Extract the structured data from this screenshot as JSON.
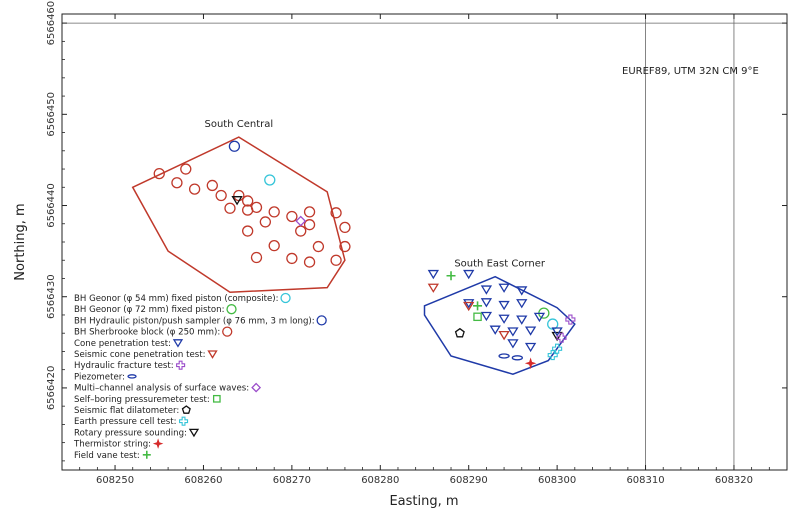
{
  "chart_data": {
    "type": "scatter",
    "title": "",
    "xlabel": "Easting, m",
    "ylabel": "Northing, m",
    "xlim": [
      608244,
      608326
    ],
    "ylim": [
      6566411,
      6566461
    ],
    "x_ticks": [
      "608250",
      "608260",
      "608270",
      "608280",
      "608290",
      "608300",
      "608310",
      "608320"
    ],
    "x_tick_values": [
      608250,
      608260,
      608270,
      608280,
      608290,
      608300,
      608310,
      608320
    ],
    "y_ticks": [
      "6566420",
      "6566430",
      "6566440",
      "6566450",
      "6566460"
    ],
    "y_tick_values": [
      6566420,
      6566430,
      6566440,
      6566450,
      6566460
    ],
    "grid": {
      "x": [
        608310,
        608320
      ],
      "y": [
        6566460
      ]
    },
    "projection_label": "EUREF89, UTM 32N CM 9°E",
    "areas": [
      {
        "name": "South Central",
        "color": "#c0392b",
        "polygon": [
          [
            608252,
            6566442
          ],
          [
            608264,
            6566447.5
          ],
          [
            608274,
            6566441.5
          ],
          [
            608276,
            6566434
          ],
          [
            608274,
            6566431
          ],
          [
            608263,
            6566430.5
          ],
          [
            608256,
            6566435
          ]
        ]
      },
      {
        "name": "South East Corner",
        "color": "#1f3aa8",
        "polygon": [
          [
            608285,
            6566429
          ],
          [
            608293,
            6566432.2
          ],
          [
            608300,
            6566428.8
          ],
          [
            608302,
            6566427
          ],
          [
            608299,
            6566423
          ],
          [
            608295,
            6566421.5
          ],
          [
            608288,
            6566423.5
          ],
          [
            608285,
            6566428
          ]
        ]
      }
    ],
    "legend": [
      {
        "label": "BH Geonor (φ 54 mm) fixed piston (composite):",
        "marker": "circle",
        "color": "#36c5d9"
      },
      {
        "label": "BH Geonor (φ 72 mm) fixed piston:",
        "marker": "circle",
        "color": "#44bb44"
      },
      {
        "label": "BH Hydraulic piston/push sampler (φ 76 mm, 3 m long):",
        "marker": "circle",
        "color": "#1f3aa8"
      },
      {
        "label": "BH Sherbrooke block (φ 250 mm):",
        "marker": "circle",
        "color": "#c0392b"
      },
      {
        "label": "Cone penetration test:",
        "marker": "triangle-down",
        "color": "#1f3aa8"
      },
      {
        "label": "Seismic cone penetration test:",
        "marker": "triangle-down",
        "color": "#c0392b"
      },
      {
        "label": "Hydraulic fracture test:",
        "marker": "plus-hollow",
        "color": "#9b4dca"
      },
      {
        "label": "Piezometer:",
        "marker": "ellipse",
        "color": "#1f3aa8"
      },
      {
        "label": "Multi–channel analysis of surface waves:",
        "marker": "diamond",
        "color": "#9b4dca"
      },
      {
        "label": "Self–boring pressuremeter test:",
        "marker": "square",
        "color": "#44bb44"
      },
      {
        "label": "Seismic flat dilatometer:",
        "marker": "pentagon",
        "color": "#111111"
      },
      {
        "label": "Earth pressure cell test:",
        "marker": "plus-hollow",
        "color": "#36c5d9"
      },
      {
        "label": "Rotary pressure sounding:",
        "marker": "triangle-down",
        "color": "#111111"
      },
      {
        "label": "Thermistor string:",
        "marker": "star",
        "color": "#d62a2a"
      },
      {
        "label": "Field vane test:",
        "marker": "plus",
        "color": "#44bb44"
      }
    ],
    "series": [
      {
        "name": "BH Sherbrooke block (φ 250 mm)",
        "marker": "circle",
        "color": "#c0392b",
        "x": [
          608255,
          608258,
          608257,
          608259,
          608261,
          608262,
          608264,
          608265,
          608266,
          608263,
          608265,
          608268,
          608270,
          608272,
          608275,
          608267,
          608272,
          608276,
          608271,
          608265,
          608268,
          608273,
          608276,
          608266,
          608270,
          608272,
          608275
        ],
        "y": [
          6566443.5,
          6566444,
          6566442.5,
          6566441.8,
          6566442.2,
          6566441.1,
          6566441.1,
          6566440.5,
          6566439.8,
          6566439.7,
          6566439.5,
          6566439.3,
          6566438.8,
          6566439.3,
          6566439.2,
          6566438.2,
          6566437.9,
          6566437.6,
          6566437.2,
          6566437.2,
          6566435.6,
          6566435.5,
          6566435.5,
          6566434.3,
          6566434.2,
          6566433.8,
          6566434
        ]
      },
      {
        "name": "BH Hydraulic piston/push sampler (φ 76 mm, 3 m long)",
        "marker": "circle",
        "color": "#1f3aa8",
        "x": [
          608263.5
        ],
        "y": [
          6566446.5
        ]
      },
      {
        "name": "BH Geonor (φ 54 mm) fixed piston (composite)",
        "marker": "circle",
        "color": "#36c5d9",
        "x": [
          608267.5,
          608299.5
        ],
        "y": [
          6566442.8,
          6566427
        ]
      },
      {
        "name": "BH Geonor (φ 72 mm) fixed piston",
        "marker": "circle",
        "color": "#44bb44",
        "x": [
          608298.5
        ],
        "y": [
          6566428.2
        ]
      },
      {
        "name": "Rotary pressure sounding",
        "marker": "triangle-down",
        "color": "#111111",
        "x": [
          608263.8,
          608300
        ],
        "y": [
          6566440.6,
          6566425.7
        ]
      },
      {
        "name": "Multi–channel analysis of surface waves",
        "marker": "diamond",
        "color": "#9b4dca",
        "x": [
          608271
        ],
        "y": [
          6566438.3
        ]
      },
      {
        "name": "Cone penetration test",
        "marker": "triangle-down",
        "color": "#1f3aa8",
        "x": [
          608286,
          608290,
          608292,
          608294,
          608296,
          608290,
          608292,
          608294,
          608296,
          608292,
          608294,
          608296,
          608298,
          608293,
          608295,
          608297,
          608300,
          608295,
          608297
        ],
        "y": [
          6566432.5,
          6566432.5,
          6566430.8,
          6566431,
          6566430.7,
          6566429.3,
          6566429.4,
          6566429.1,
          6566429.3,
          6566427.9,
          6566427.6,
          6566427.5,
          6566427.8,
          6566426.4,
          6566426.2,
          6566426.3,
          6566426.2,
          6566424.9,
          6566424.5
        ]
      },
      {
        "name": "Seismic cone penetration test",
        "marker": "triangle-down",
        "color": "#c0392b",
        "x": [
          608286,
          608290,
          608294
        ],
        "y": [
          6566431,
          6566429,
          6566425.8
        ]
      },
      {
        "name": "Field vane test",
        "marker": "plus",
        "color": "#44bb44",
        "x": [
          608288,
          608291
        ],
        "y": [
          6566432.3,
          6566429
        ]
      },
      {
        "name": "Self–boring pressuremeter test",
        "marker": "square",
        "color": "#44bb44",
        "x": [
          608291
        ],
        "y": [
          6566427.8
        ]
      },
      {
        "name": "Seismic flat dilatometer",
        "marker": "pentagon",
        "color": "#111111",
        "x": [
          608289
        ],
        "y": [
          6566426
        ]
      },
      {
        "name": "Hydraulic fracture test",
        "marker": "plus-hollow",
        "color": "#9b4dca",
        "x": [
          608301.5,
          608300.5
        ],
        "y": [
          6566427.5,
          6566425.5
        ]
      },
      {
        "name": "Earth pressure cell test",
        "marker": "plus-hollow",
        "color": "#36c5d9",
        "x": [
          608300,
          608299.5
        ],
        "y": [
          6566424.3,
          6566423.6
        ]
      },
      {
        "name": "Piezometer",
        "marker": "ellipse",
        "color": "#1f3aa8",
        "x": [
          608294,
          608295.5
        ],
        "y": [
          6566423.5,
          6566423.3
        ]
      },
      {
        "name": "Thermistor string",
        "marker": "star",
        "color": "#d62a2a",
        "x": [
          608297
        ],
        "y": [
          6566422.7
        ]
      }
    ]
  }
}
